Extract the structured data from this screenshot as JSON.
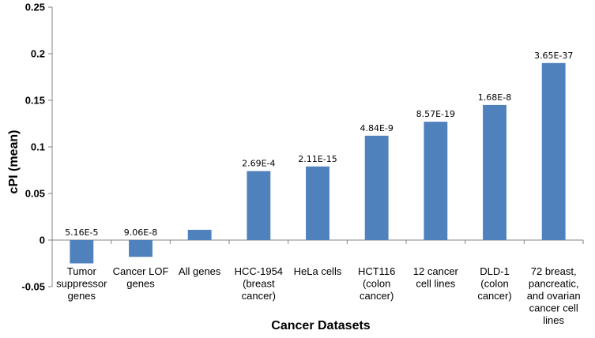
{
  "chart_data": {
    "type": "bar",
    "xlabel": "Cancer Datasets",
    "ylabel": "cPI (mean)",
    "ylim": [
      -0.05,
      0.25
    ],
    "yticks": [
      -0.05,
      0,
      0.05,
      0.1,
      0.15,
      0.2,
      0.25
    ],
    "ytick_labels": [
      "-0.05",
      "0",
      "0.05",
      "0.1",
      "0.15",
      "0.2",
      "0.25"
    ],
    "grid": false,
    "bar_color": "#4F81BD",
    "categories": [
      "Tumor suppressor genes",
      "Cancer LOF genes",
      "All genes",
      "HCC-1954 (breast cancer)",
      "HeLa cells",
      "HCT116 (colon cancer)",
      "12 cancer cell lines",
      "DLD-1 (colon cancer)",
      "72 breast, pancreatic, and ovarian cancer cell lines"
    ],
    "category_lines": [
      [
        "Tumor",
        "suppressor",
        "genes"
      ],
      [
        "Cancer LOF",
        "genes"
      ],
      [
        "All genes"
      ],
      [
        "HCC-1954",
        "(breast",
        "cancer)"
      ],
      [
        "HeLa cells"
      ],
      [
        "HCT116",
        "(colon",
        "cancer)"
      ],
      [
        "12 cancer",
        "cell lines"
      ],
      [
        "DLD-1",
        "(colon",
        "cancer)"
      ],
      [
        "72 breast,",
        "pancreatic,",
        "and ovarian",
        "cancer cell",
        "lines"
      ]
    ],
    "values": [
      -0.025,
      -0.018,
      0.011,
      0.074,
      0.079,
      0.112,
      0.127,
      0.145,
      0.19
    ],
    "data_labels": [
      "5.16E-5",
      "9.06E-8",
      "",
      "2.69E-4",
      "2.11E-15",
      "4.84E-9",
      "8.57E-19",
      "1.68E-8",
      "3.65E-37"
    ]
  }
}
